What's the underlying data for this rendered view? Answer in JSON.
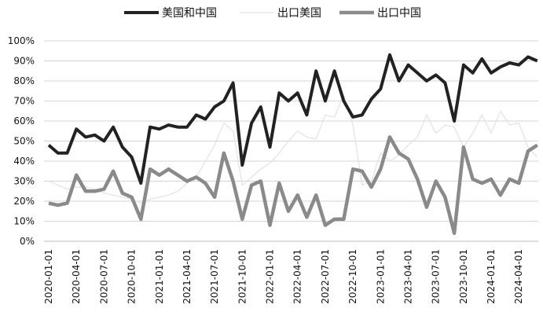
{
  "chart_data": {
    "type": "line",
    "categories": [
      "2020-01-01",
      null,
      null,
      "2020-04-01",
      null,
      null,
      "2020-07-01",
      null,
      null,
      "2020-10-01",
      null,
      null,
      "2021-01-01",
      null,
      null,
      "2021-04-01",
      null,
      null,
      "2021-07-01",
      null,
      null,
      "2021-10-01",
      null,
      null,
      "2022-01-01",
      null,
      null,
      "2022-04-01",
      null,
      null,
      "2022-07-01",
      null,
      null,
      "2022-10-01",
      null,
      null,
      "2023-01-01",
      null,
      null,
      "2023-04-01",
      null,
      null,
      "2023-07-01",
      null,
      null,
      "2023-10-01",
      null,
      null,
      "2024-01-01",
      null,
      null,
      "2024-04-01",
      null,
      null
    ],
    "series": [
      {
        "name": "美国和中国",
        "color": "#222222",
        "values": [
          48,
          44,
          44,
          56,
          52,
          53,
          50,
          57,
          47,
          42,
          29,
          57,
          56,
          58,
          57,
          57,
          63,
          61,
          67,
          70,
          79,
          38,
          59,
          67,
          47,
          74,
          70,
          74,
          63,
          85,
          70,
          85,
          70,
          62,
          63,
          71,
          76,
          93,
          80,
          88,
          84,
          80,
          83,
          79,
          60,
          88,
          84,
          91,
          84,
          87,
          89,
          88,
          92,
          90
        ]
      },
      {
        "name": "出口美国",
        "color": "#e2e2e2",
        "values": [
          30,
          28,
          26,
          27,
          27,
          26,
          24,
          23,
          22,
          21,
          19,
          21,
          22,
          23,
          25,
          29,
          32,
          40,
          48,
          59,
          55,
          28,
          32,
          36,
          39,
          44,
          50,
          55,
          52,
          51,
          63,
          62,
          73,
          58,
          28,
          30,
          44,
          40,
          43,
          48,
          52,
          63,
          54,
          58,
          57,
          47,
          54,
          63,
          54,
          65,
          58,
          59,
          47,
          42
        ]
      },
      {
        "name": "出口中国",
        "color": "#8a8a8a",
        "values": [
          19,
          18,
          19,
          33,
          25,
          25,
          26,
          35,
          24,
          22,
          11,
          36,
          33,
          36,
          33,
          30,
          32,
          29,
          22,
          44,
          30,
          11,
          28,
          30,
          8,
          29,
          15,
          23,
          12,
          23,
          8,
          11,
          11,
          36,
          35,
          27,
          36,
          52,
          44,
          41,
          31,
          17,
          30,
          22,
          4,
          47,
          31,
          29,
          31,
          23,
          31,
          29,
          45,
          48
        ]
      }
    ],
    "ylim": [
      0,
      100
    ],
    "yticks": [
      {
        "value": 0,
        "label": "0%"
      },
      {
        "value": 10,
        "label": "10%"
      },
      {
        "value": 20,
        "label": "20%"
      },
      {
        "value": 30,
        "label": "30%"
      },
      {
        "value": 40,
        "label": "40%"
      },
      {
        "value": 50,
        "label": "50%"
      },
      {
        "value": 60,
        "label": "60%"
      },
      {
        "value": 70,
        "label": "70%"
      },
      {
        "value": 80,
        "label": "80%"
      },
      {
        "value": 90,
        "label": "90%"
      },
      {
        "value": 100,
        "label": "100%"
      }
    ],
    "grid": true,
    "legend": "top"
  }
}
